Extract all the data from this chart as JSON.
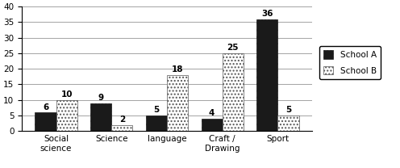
{
  "categories": [
    "Social\nscience",
    "Science",
    "language",
    "Craft /\nDrawing",
    "Sport"
  ],
  "school_a": [
    6,
    9,
    5,
    4,
    36
  ],
  "school_b": [
    10,
    2,
    18,
    25,
    5
  ],
  "bar_color_a": "#1a1a1a",
  "bar_color_b": "#e0e0e0",
  "bar_hatch_a": "....",
  "bar_hatch_b": "....",
  "title": "",
  "ylabel": "",
  "ylim": [
    0,
    40
  ],
  "yticks": [
    0,
    5,
    10,
    15,
    20,
    25,
    30,
    35,
    40
  ],
  "legend_a": "School A",
  "legend_b": "School B",
  "bar_width": 0.38,
  "label_fontsize": 7.5,
  "tick_fontsize": 7.5,
  "legend_fontsize": 7.5,
  "background_color": "#ffffff"
}
